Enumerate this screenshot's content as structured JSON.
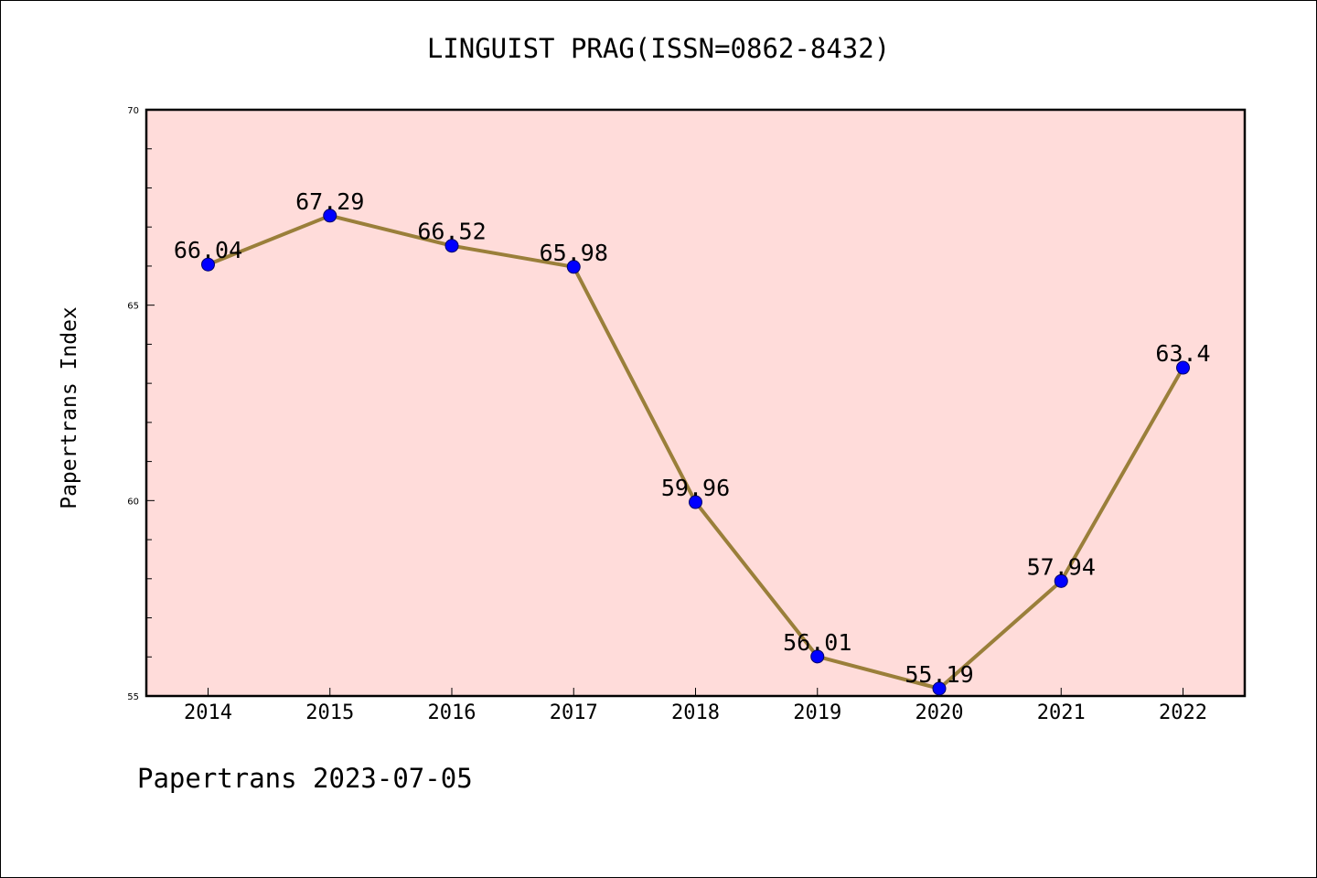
{
  "chart_data": {
    "type": "line",
    "title": "LINGUIST PRAG(ISSN=0862-8432)",
    "ylabel": "Papertrans Index",
    "xlabel": "",
    "categories": [
      "2014",
      "2015",
      "2016",
      "2017",
      "2018",
      "2019",
      "2020",
      "2021",
      "2022"
    ],
    "values": [
      66.04,
      67.29,
      66.52,
      65.98,
      59.96,
      56.01,
      55.19,
      57.94,
      63.4
    ],
    "data_labels": [
      "66.04",
      "67.29",
      "66.52",
      "65.98",
      "59.96",
      "56.01",
      "55.19",
      "57.94",
      "63.4"
    ],
    "ylim": [
      55,
      70
    ],
    "yticks": [
      55,
      60,
      65,
      70
    ],
    "grid": false,
    "colors": {
      "plot_bg": "#FFDCDA",
      "line": "#9A7F3A",
      "marker": "#0000FF"
    }
  },
  "footer": "Papertrans 2023-07-05"
}
